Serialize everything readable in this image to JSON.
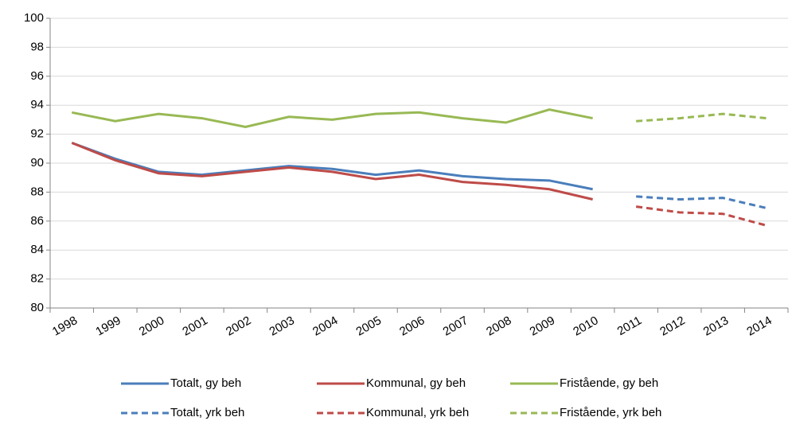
{
  "chart_data": {
    "type": "line",
    "categories": [
      "1998",
      "1999",
      "2000",
      "2001",
      "2002",
      "2003",
      "2004",
      "2005",
      "2006",
      "2007",
      "2008",
      "2009",
      "2010",
      "2011",
      "2012",
      "2013",
      "2014"
    ],
    "ylim": [
      80,
      100
    ],
    "yticks": [
      80,
      82,
      84,
      86,
      88,
      90,
      92,
      94,
      96,
      98,
      100
    ],
    "grid": true,
    "series": [
      {
        "name": "Totalt, gy beh",
        "color": "#4a7ebb",
        "dashed": false,
        "values": [
          91.4,
          90.3,
          89.4,
          89.2,
          89.5,
          89.8,
          89.6,
          89.2,
          89.5,
          89.1,
          88.9,
          88.8,
          88.2,
          null,
          null,
          null,
          null
        ]
      },
      {
        "name": "Kommunal, gy beh",
        "color": "#be4b48",
        "dashed": false,
        "values": [
          91.4,
          90.2,
          89.3,
          89.1,
          89.4,
          89.7,
          89.4,
          88.9,
          89.2,
          88.7,
          88.5,
          88.2,
          87.5,
          null,
          null,
          null,
          null
        ]
      },
      {
        "name": "Fristående, gy beh",
        "color": "#98b954",
        "dashed": false,
        "values": [
          93.5,
          92.9,
          93.4,
          93.1,
          92.5,
          93.2,
          93.0,
          93.4,
          93.5,
          93.1,
          92.8,
          93.7,
          93.1,
          null,
          null,
          null,
          null
        ]
      },
      {
        "name": "Totalt, yrk beh",
        "color": "#4a7ebb",
        "dashed": true,
        "values": [
          null,
          null,
          null,
          null,
          null,
          null,
          null,
          null,
          null,
          null,
          null,
          null,
          null,
          87.7,
          87.5,
          87.6,
          86.9
        ]
      },
      {
        "name": "Kommunal, yrk beh",
        "color": "#be4b48",
        "dashed": true,
        "values": [
          null,
          null,
          null,
          null,
          null,
          null,
          null,
          null,
          null,
          null,
          null,
          null,
          null,
          87.0,
          86.6,
          86.5,
          85.7
        ]
      },
      {
        "name": "Fristående, yrk beh",
        "color": "#98b954",
        "dashed": true,
        "values": [
          null,
          null,
          null,
          null,
          null,
          null,
          null,
          null,
          null,
          null,
          null,
          null,
          null,
          92.9,
          93.1,
          93.4,
          93.1
        ]
      }
    ]
  }
}
